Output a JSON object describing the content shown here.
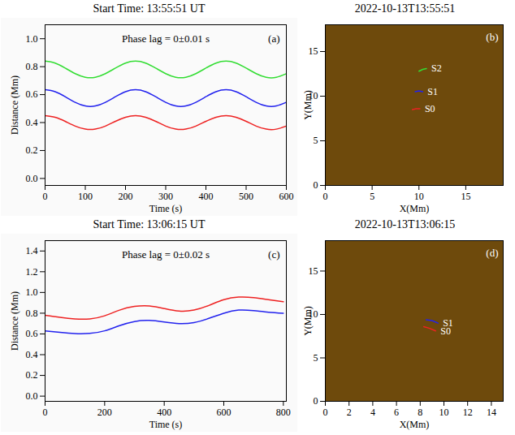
{
  "chart_data": [
    {
      "type": "line",
      "title": "Start Time: 13:55:51 UT",
      "panel_label": "(a)",
      "annotation": "Phase lag = 0±0.01 s",
      "x_label": "Time (s)",
      "y_label": "Distance (Mm)",
      "xlim": [
        0,
        600
      ],
      "xticks": [
        0,
        100,
        200,
        300,
        400,
        500,
        600
      ],
      "ylim": [
        -0.05,
        1.1
      ],
      "yticks": [
        {
          "value": 0,
          "label": "0.0"
        },
        {
          "value": 0.2,
          "label": "0.2"
        },
        {
          "value": 0.4,
          "label": "0.4"
        },
        {
          "value": 0.6,
          "label": "0.6"
        },
        {
          "value": 0.8,
          "label": "0.8"
        },
        {
          "value": 1,
          "label": "1.0"
        }
      ],
      "x": [
        0,
        25,
        50,
        75,
        100,
        125,
        150,
        175,
        200,
        225,
        250,
        275,
        300,
        325,
        350,
        375,
        400,
        425,
        450,
        475,
        500,
        525,
        550,
        575,
        600
      ],
      "series": [
        {
          "color": "#33dd33",
          "values": [
            0.84,
            0.826,
            0.79,
            0.75,
            0.724,
            0.724,
            0.75,
            0.79,
            0.826,
            0.84,
            0.826,
            0.79,
            0.75,
            0.724,
            0.724,
            0.75,
            0.79,
            0.826,
            0.84,
            0.826,
            0.79,
            0.75,
            0.724,
            0.724,
            0.75
          ]
        },
        {
          "color": "#2222ee",
          "values": [
            0.635,
            0.621,
            0.585,
            0.545,
            0.519,
            0.519,
            0.545,
            0.585,
            0.621,
            0.635,
            0.621,
            0.585,
            0.545,
            0.519,
            0.519,
            0.545,
            0.585,
            0.621,
            0.635,
            0.621,
            0.585,
            0.545,
            0.519,
            0.519,
            0.545
          ]
        },
        {
          "color": "#ee2222",
          "values": [
            0.45,
            0.438,
            0.409,
            0.375,
            0.353,
            0.353,
            0.375,
            0.409,
            0.438,
            0.45,
            0.438,
            0.409,
            0.375,
            0.353,
            0.353,
            0.375,
            0.409,
            0.438,
            0.45,
            0.438,
            0.409,
            0.375,
            0.353,
            0.353,
            0.375
          ]
        }
      ]
    },
    {
      "type": "image",
      "title": "2022-10-13T13:55:51",
      "panel_label": "(b)",
      "x_label": "X(Mm)",
      "y_label": "Y(Mm)",
      "xlim": [
        0,
        19
      ],
      "xticks": [
        0,
        5,
        10,
        15
      ],
      "ylim": [
        0,
        18
      ],
      "yticks": [
        0,
        5,
        10,
        15
      ],
      "series": [
        {
          "name": "S0",
          "color": "#ee2222",
          "x": [
            9.3,
            9.7,
            10.1
          ],
          "y": [
            8.5,
            8.6,
            8.6
          ]
        },
        {
          "name": "S1",
          "color": "#2222ee",
          "x": [
            9.6,
            10.0,
            10.4
          ],
          "y": [
            10.5,
            10.6,
            10.5
          ]
        },
        {
          "name": "S2",
          "color": "#33dd33",
          "x": [
            10.0,
            10.4,
            10.8
          ],
          "y": [
            12.8,
            13.0,
            13.1
          ]
        }
      ]
    },
    {
      "type": "line",
      "title": "Start Time: 13:06:15 UT",
      "panel_label": "(c)",
      "annotation": "Phase lag = 0±0.02 s",
      "x_label": "Time (s)",
      "y_label": "Distance (Mm)",
      "xlim": [
        0,
        810
      ],
      "xticks": [
        0,
        200,
        400,
        600,
        800
      ],
      "ylim": [
        -0.05,
        1.5
      ],
      "yticks": [
        {
          "value": 0,
          "label": "0.0"
        },
        {
          "value": 0.2,
          "label": "0.2"
        },
        {
          "value": 0.4,
          "label": "0.4"
        },
        {
          "value": 0.6,
          "label": "0.6"
        },
        {
          "value": 0.8,
          "label": "0.8"
        },
        {
          "value": 1,
          "label": "1.0"
        },
        {
          "value": 1.2,
          "label": "1.2"
        },
        {
          "value": 1.4,
          "label": "1.4"
        }
      ],
      "x": [
        0,
        50,
        100,
        150,
        200,
        250,
        300,
        350,
        400,
        450,
        500,
        550,
        600,
        650,
        700,
        750,
        800
      ],
      "series": [
        {
          "color": "#2222ee",
          "values": [
            0.63,
            0.615,
            0.603,
            0.605,
            0.63,
            0.68,
            0.72,
            0.73,
            0.715,
            0.7,
            0.71,
            0.75,
            0.8,
            0.83,
            0.825,
            0.81,
            0.8
          ]
        },
        {
          "color": "#ee2222",
          "values": [
            0.78,
            0.76,
            0.745,
            0.745,
            0.775,
            0.83,
            0.865,
            0.87,
            0.845,
            0.82,
            0.83,
            0.875,
            0.93,
            0.955,
            0.95,
            0.93,
            0.91
          ]
        }
      ]
    },
    {
      "type": "image",
      "title": "2022-10-13T13:06:15",
      "panel_label": "(d)",
      "x_label": "X(Mm)",
      "y_label": "Y(Mm)",
      "xlim": [
        0,
        15
      ],
      "xticks": [
        0,
        2,
        4,
        6,
        8,
        10,
        12,
        14
      ],
      "ylim": [
        0,
        18.5
      ],
      "yticks": [
        0,
        5,
        10,
        15
      ],
      "series": [
        {
          "name": "S1",
          "color": "#2222ee",
          "x": [
            8.5,
            9.0,
            9.5
          ],
          "y": [
            9.4,
            9.3,
            9.0
          ]
        },
        {
          "name": "S0",
          "color": "#ee2222",
          "x": [
            8.3,
            8.8,
            9.3
          ],
          "y": [
            8.6,
            8.4,
            8.1
          ]
        }
      ]
    }
  ]
}
